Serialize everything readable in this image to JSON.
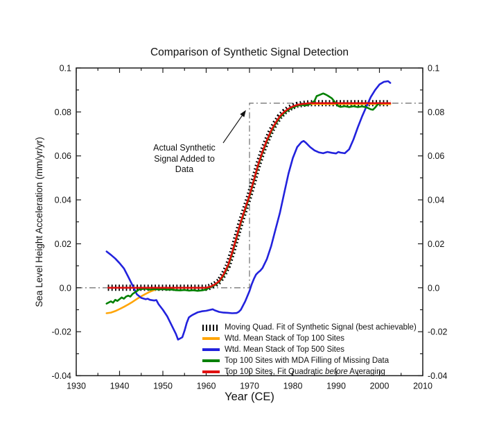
{
  "title": "Comparison of Synthetic Signal Detection",
  "annotation": {
    "line1": "Actual Synthetic",
    "line2": "Signal Added to",
    "line3": "Data"
  },
  "legend": {
    "items": [
      {
        "id": "moving-quad-fit",
        "symbol": "tick-marks-sample",
        "color": "#000000",
        "label": "Moving Quad. Fit of Synthetic Signal (best achievable)"
      },
      {
        "id": "top100-stack",
        "symbol": "orange-line-sample",
        "color": "#FFA508",
        "label": "Wtd. Mean Stack of Top 100 Sites"
      },
      {
        "id": "top500-stack",
        "symbol": "blue-line-sample",
        "color": "#2222DD",
        "label": "Wtd. Mean Stack of Top 500 Sites"
      },
      {
        "id": "top100-mda",
        "symbol": "green-line-sample",
        "color": "#008000",
        "label": "Top 100 Sites with MDA Filling of Missing Data"
      },
      {
        "id": "top100-quad-before",
        "symbol": "red-line-sample",
        "color": "#E01010",
        "label_pre": "Top 100 Sites, Fit Quadratic ",
        "label_italic": "before",
        "label_post": " Averaging"
      }
    ]
  },
  "chart_data": {
    "type": "line",
    "title": "Comparison of Synthetic Signal Detection",
    "xlabel": "Year (CE)",
    "ylabel": "Sea Level Height Acceleration (mm/yr/yr)",
    "xlim": [
      1930,
      2010
    ],
    "ylim": [
      -0.04,
      0.1
    ],
    "x_major_ticks": [
      1930,
      1940,
      1950,
      1960,
      1970,
      1980,
      1990,
      2000,
      2010
    ],
    "x_minor_step": 5,
    "y_major_tick_labels_bottom_up": [
      "-0.04",
      "-0.02",
      "0.0",
      "0.02",
      "0.04",
      "0.06",
      "0.08",
      "0.1"
    ],
    "y_minor_step": 0.01,
    "grid": false,
    "legend_position": "inside bottom-right",
    "axes_on_both_sides": true,
    "reference_line": {
      "name": "Actual Synthetic Signal Added to Data",
      "style": "dash-dot",
      "color": "#787878",
      "points": [
        [
          1930,
          0
        ],
        [
          1970,
          0
        ],
        [
          1970,
          0.084
        ],
        [
          2010,
          0.084
        ]
      ]
    },
    "series": [
      {
        "id": "moving-quad-fit",
        "name": "Moving Quad. Fit of Synthetic Signal (best achievable)",
        "color": "#000000",
        "style": "tick-marks",
        "points": [
          [
            1937.3,
            0
          ],
          [
            1960,
            0
          ],
          [
            1961,
            0.0005
          ],
          [
            1962,
            0.0015
          ],
          [
            1963,
            0.003
          ],
          [
            1964,
            0.006
          ],
          [
            1965,
            0.01
          ],
          [
            1966,
            0.016
          ],
          [
            1967,
            0.023
          ],
          [
            1968,
            0.03
          ],
          [
            1969,
            0.036
          ],
          [
            1970,
            0.042
          ],
          [
            1971,
            0.049
          ],
          [
            1972,
            0.056
          ],
          [
            1973,
            0.062
          ],
          [
            1974,
            0.067
          ],
          [
            1975,
            0.0715
          ],
          [
            1976,
            0.075
          ],
          [
            1977,
            0.078
          ],
          [
            1978,
            0.08
          ],
          [
            1979,
            0.0815
          ],
          [
            1980,
            0.0825
          ],
          [
            1981,
            0.0832
          ],
          [
            1982,
            0.0836
          ],
          [
            1983,
            0.0838
          ],
          [
            1984,
            0.084
          ],
          [
            2002.5,
            0.084
          ]
        ]
      },
      {
        "id": "top100-stack",
        "name": "Wtd. Mean Stack of Top 100 Sites",
        "color": "#FFA508",
        "style": "solid",
        "points": [
          [
            1937,
            -0.0116
          ],
          [
            1938,
            -0.0113
          ],
          [
            1939,
            -0.0106
          ],
          [
            1940,
            -0.0097
          ],
          [
            1941,
            -0.0087
          ],
          [
            1942,
            -0.0076
          ],
          [
            1943,
            -0.0064
          ],
          [
            1944,
            -0.0051
          ],
          [
            1945,
            -0.0039
          ],
          [
            1946,
            -0.0028
          ],
          [
            1947,
            -0.0018
          ],
          [
            1948,
            -0.001
          ],
          [
            1949,
            -0.0004
          ],
          [
            1950,
            -0.0001
          ],
          [
            1960,
            0
          ],
          [
            1961,
            0.0005
          ],
          [
            1962,
            0.0015
          ],
          [
            1963,
            0.003
          ],
          [
            1964,
            0.006
          ],
          [
            1965,
            0.01
          ],
          [
            1966,
            0.016
          ],
          [
            1967,
            0.023
          ],
          [
            1968,
            0.03
          ],
          [
            1969,
            0.036
          ],
          [
            1970,
            0.042
          ],
          [
            1971,
            0.049
          ],
          [
            1972,
            0.056
          ],
          [
            1973,
            0.062
          ],
          [
            1974,
            0.067
          ],
          [
            1975,
            0.0715
          ],
          [
            1976,
            0.075
          ],
          [
            1977,
            0.078
          ],
          [
            1978,
            0.08
          ],
          [
            1979,
            0.0812
          ],
          [
            1980,
            0.0822
          ],
          [
            1981,
            0.0828
          ],
          [
            1982,
            0.0832
          ],
          [
            1983,
            0.0834
          ],
          [
            1984,
            0.0836
          ],
          [
            2002.5,
            0.0836
          ]
        ]
      },
      {
        "id": "top500-stack",
        "name": "Wtd. Mean Stack of Top 500 Sites",
        "color": "#2222DD",
        "style": "solid",
        "points": [
          [
            1937,
            0.0165
          ],
          [
            1938,
            0.015
          ],
          [
            1939,
            0.0133
          ],
          [
            1940,
            0.0112
          ],
          [
            1941,
            0.0088
          ],
          [
            1942,
            0.005
          ],
          [
            1943,
            0.001
          ],
          [
            1944,
            -0.003
          ],
          [
            1945,
            -0.0046
          ],
          [
            1946,
            -0.0052
          ],
          [
            1946.5,
            -0.005
          ],
          [
            1947,
            -0.0055
          ],
          [
            1948,
            -0.0058
          ],
          [
            1948.5,
            -0.0056
          ],
          [
            1949,
            -0.0075
          ],
          [
            1950,
            -0.01
          ],
          [
            1951,
            -0.013
          ],
          [
            1952,
            -0.017
          ],
          [
            1953,
            -0.021
          ],
          [
            1953.5,
            -0.0236
          ],
          [
            1954.5,
            -0.0225
          ],
          [
            1955,
            -0.0195
          ],
          [
            1955.5,
            -0.016
          ],
          [
            1956,
            -0.0135
          ],
          [
            1956.5,
            -0.0128
          ],
          [
            1957,
            -0.0122
          ],
          [
            1958,
            -0.0112
          ],
          [
            1959,
            -0.0107
          ],
          [
            1960,
            -0.0105
          ],
          [
            1961,
            -0.01
          ],
          [
            1961.5,
            -0.0098
          ],
          [
            1962,
            -0.0103
          ],
          [
            1963,
            -0.011
          ],
          [
            1964,
            -0.0113
          ],
          [
            1965,
            -0.0114
          ],
          [
            1966,
            -0.0116
          ],
          [
            1967,
            -0.0115
          ],
          [
            1967.5,
            -0.011
          ],
          [
            1968,
            -0.01
          ],
          [
            1969,
            -0.0062
          ],
          [
            1970,
            -0.0015
          ],
          [
            1970.5,
            0.0015
          ],
          [
            1971,
            0.004
          ],
          [
            1971.5,
            0.006
          ],
          [
            1972,
            0.007
          ],
          [
            1972.5,
            0.0078
          ],
          [
            1973,
            0.009
          ],
          [
            1974,
            0.013
          ],
          [
            1975,
            0.019
          ],
          [
            1976,
            0.0265
          ],
          [
            1977,
            0.034
          ],
          [
            1978,
            0.043
          ],
          [
            1979,
            0.052
          ],
          [
            1980,
            0.059
          ],
          [
            1981,
            0.064
          ],
          [
            1982,
            0.0663
          ],
          [
            1982.5,
            0.0668
          ],
          [
            1983,
            0.066
          ],
          [
            1984,
            0.064
          ],
          [
            1985,
            0.0625
          ],
          [
            1986,
            0.0616
          ],
          [
            1987,
            0.0612
          ],
          [
            1988,
            0.0618
          ],
          [
            1989,
            0.0614
          ],
          [
            1990,
            0.0611
          ],
          [
            1990.5,
            0.0618
          ],
          [
            1991,
            0.0615
          ],
          [
            1992,
            0.0612
          ],
          [
            1993,
            0.063
          ],
          [
            1994,
            0.0675
          ],
          [
            1995,
            0.073
          ],
          [
            1996,
            0.078
          ],
          [
            1997,
            0.0825
          ],
          [
            1998,
            0.0868
          ],
          [
            1999,
            0.09
          ],
          [
            2000,
            0.0925
          ],
          [
            2001,
            0.0937
          ],
          [
            2002,
            0.094
          ],
          [
            2002.5,
            0.0932
          ]
        ]
      },
      {
        "id": "top100-mda",
        "name": "Top 100 Sites with MDA Filling of Missing Data",
        "color": "#008000",
        "style": "solid",
        "points": [
          [
            1937,
            -0.0072
          ],
          [
            1938,
            -0.0062
          ],
          [
            1938.5,
            -0.0068
          ],
          [
            1939,
            -0.0055
          ],
          [
            1939.5,
            -0.006
          ],
          [
            1940,
            -0.0052
          ],
          [
            1940.5,
            -0.0044
          ],
          [
            1941,
            -0.005
          ],
          [
            1941.5,
            -0.004
          ],
          [
            1942,
            -0.0036
          ],
          [
            1942.5,
            -0.004
          ],
          [
            1943,
            -0.0028
          ],
          [
            1944,
            -0.0015
          ],
          [
            1944.5,
            -0.0008
          ],
          [
            1945,
            -0.0006
          ],
          [
            1946,
            -0.0004
          ],
          [
            1947,
            -0.0009
          ],
          [
            1948,
            -0.0006
          ],
          [
            1949,
            -0.0008
          ],
          [
            1950,
            -0.0006
          ],
          [
            1951,
            -0.0009
          ],
          [
            1952,
            -0.0008
          ],
          [
            1953,
            -0.0011
          ],
          [
            1954,
            -0.0012
          ],
          [
            1955,
            -0.001
          ],
          [
            1956,
            -0.0013
          ],
          [
            1957,
            -0.0011
          ],
          [
            1958,
            -0.0014
          ],
          [
            1959,
            -0.0012
          ],
          [
            1960,
            -0.0008
          ],
          [
            1961,
            0.0003
          ],
          [
            1962,
            0.0012
          ],
          [
            1963,
            0.0027
          ],
          [
            1964,
            0.0055
          ],
          [
            1965,
            0.0095
          ],
          [
            1966,
            0.0155
          ],
          [
            1967,
            0.0225
          ],
          [
            1968,
            0.0295
          ],
          [
            1969,
            0.0355
          ],
          [
            1970,
            0.0415
          ],
          [
            1971,
            0.0485
          ],
          [
            1972,
            0.0555
          ],
          [
            1973,
            0.0615
          ],
          [
            1974,
            0.0665
          ],
          [
            1975,
            0.071
          ],
          [
            1976,
            0.0745
          ],
          [
            1977,
            0.0775
          ],
          [
            1978,
            0.0795
          ],
          [
            1979,
            0.081
          ],
          [
            1980,
            0.082
          ],
          [
            1981,
            0.0828
          ],
          [
            1982,
            0.0832
          ],
          [
            1983,
            0.083
          ],
          [
            1984,
            0.0836
          ],
          [
            1985,
            0.085
          ],
          [
            1985.5,
            0.0872
          ],
          [
            1986,
            0.0876
          ],
          [
            1987,
            0.0884
          ],
          [
            1987.5,
            0.088
          ],
          [
            1988,
            0.0875
          ],
          [
            1989,
            0.0862
          ],
          [
            1990,
            0.0838
          ],
          [
            1990.5,
            0.0827
          ],
          [
            1991,
            0.0823
          ],
          [
            1992,
            0.0826
          ],
          [
            1993,
            0.0822
          ],
          [
            1994,
            0.0826
          ],
          [
            1995,
            0.0822
          ],
          [
            1996,
            0.0825
          ],
          [
            1997,
            0.0821
          ],
          [
            1998,
            0.0812
          ],
          [
            1998.5,
            0.081
          ],
          [
            1999,
            0.082
          ],
          [
            1999.5,
            0.0832
          ],
          [
            2000,
            0.0838
          ],
          [
            2001,
            0.084
          ]
        ]
      },
      {
        "id": "top100-quad-before",
        "name": "Top 100 Sites, Fit Quadratic before Averaging",
        "color": "#E01010",
        "style": "solid",
        "points": [
          [
            1937.4,
            0
          ],
          [
            1960,
            0
          ],
          [
            1961,
            0.0005
          ],
          [
            1962,
            0.0015
          ],
          [
            1963,
            0.003
          ],
          [
            1964,
            0.006
          ],
          [
            1965,
            0.01
          ],
          [
            1966,
            0.016
          ],
          [
            1967,
            0.023
          ],
          [
            1968,
            0.03
          ],
          [
            1969,
            0.036
          ],
          [
            1970,
            0.042
          ],
          [
            1971,
            0.049
          ],
          [
            1972,
            0.056
          ],
          [
            1973,
            0.062
          ],
          [
            1974,
            0.067
          ],
          [
            1975,
            0.0715
          ],
          [
            1976,
            0.075
          ],
          [
            1977,
            0.078
          ],
          [
            1978,
            0.08
          ],
          [
            1979,
            0.0815
          ],
          [
            1980,
            0.0825
          ],
          [
            1981,
            0.0832
          ],
          [
            1982,
            0.0836
          ],
          [
            1983,
            0.0838
          ],
          [
            1984,
            0.084
          ],
          [
            2002.5,
            0.084
          ]
        ]
      }
    ]
  }
}
